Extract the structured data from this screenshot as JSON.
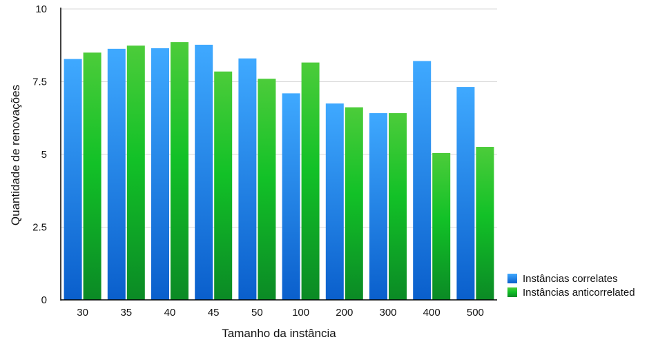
{
  "chart_data": {
    "type": "bar",
    "title": "",
    "xlabel": "Tamanho da instância",
    "ylabel": "Quantidade de renovações",
    "categories": [
      "30",
      "35",
      "40",
      "45",
      "50",
      "100",
      "200",
      "300",
      "400",
      "500"
    ],
    "series": [
      {
        "name": "Instâncias correlates",
        "color": "#1e88f5",
        "values": [
          8.28,
          8.63,
          8.65,
          8.77,
          8.3,
          7.1,
          6.75,
          6.42,
          8.21,
          7.32
        ]
      },
      {
        "name": "Instâncias anticorrelated",
        "color": "#22bb33",
        "values": [
          8.5,
          8.74,
          8.86,
          7.85,
          7.6,
          8.16,
          6.62,
          6.42,
          5.05,
          5.26
        ]
      }
    ],
    "ylim": [
      0,
      10
    ],
    "yticks": [
      0,
      2.5,
      5,
      7.5,
      10
    ],
    "ytick_labels": [
      "0",
      "2.5",
      "5",
      "7.5",
      "10"
    ],
    "grid": true,
    "legend_position": "bottom-right"
  }
}
